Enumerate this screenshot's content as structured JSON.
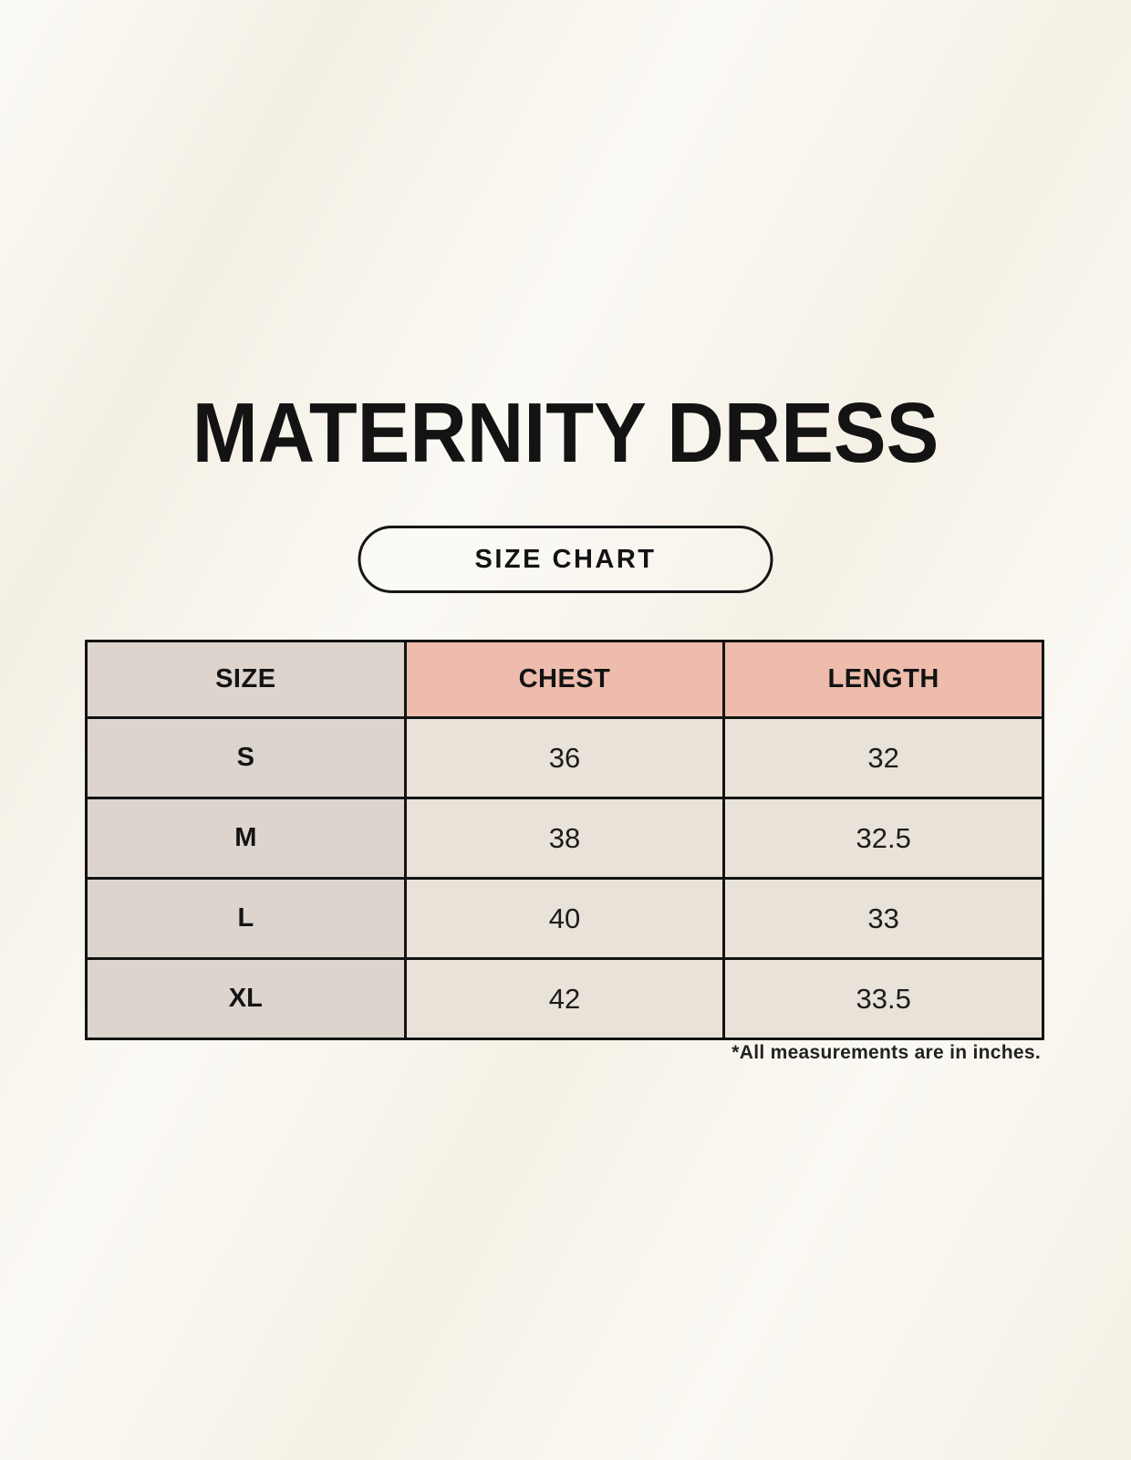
{
  "page": {
    "title": "MATERNITY DRESS",
    "size_chart_button_label": "SIZE CHART",
    "footnote": "*All measurements are in inches."
  },
  "table": {
    "headers": [
      "SIZE",
      "CHEST",
      "LENGTH"
    ],
    "rows": [
      {
        "size": "S",
        "chest": "36",
        "length": "32"
      },
      {
        "size": "M",
        "chest": "38",
        "length": "32.5"
      },
      {
        "size": "L",
        "chest": "40",
        "length": "33"
      },
      {
        "size": "XL",
        "chest": "42",
        "length": "33.5"
      }
    ]
  },
  "chart_data": {
    "type": "table",
    "title": "MATERNITY DRESS",
    "columns": [
      "SIZE",
      "CHEST",
      "LENGTH"
    ],
    "rows": [
      [
        "S",
        "36",
        "32"
      ],
      [
        "M",
        "38",
        "32.5"
      ],
      [
        "L",
        "40",
        "33"
      ],
      [
        "XL",
        "42",
        "33.5"
      ]
    ],
    "units_note": "*All measurements are in inches."
  },
  "colors": {
    "background": "#f8f4ea",
    "header_pink": "#eebcac",
    "size_column_gray": "#dcd4cd",
    "data_cell_cream": "#e9e2d8",
    "border": "#131313"
  }
}
